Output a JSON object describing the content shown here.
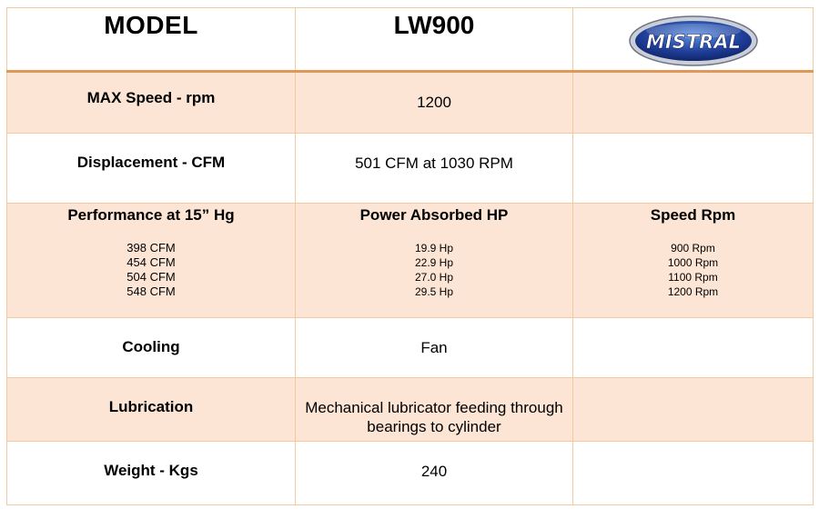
{
  "header": {
    "col1": "MODEL",
    "col2": "LW900",
    "logo_text": "MISTRAL"
  },
  "rows": [
    {
      "label": "MAX Speed - rpm",
      "value": "1200"
    },
    {
      "label": "Displacement -  CFM",
      "value": "501 CFM at 1030 RPM"
    },
    {
      "label": "Performance at 15” Hg",
      "col2_title": "Power Absorbed HP",
      "col3_title": "Speed Rpm",
      "cfm": [
        "398 CFM",
        "454 CFM",
        "504 CFM",
        "548 CFM"
      ],
      "hp": [
        "19.9 Hp",
        "22.9 Hp",
        "27.0 Hp",
        "29.5 Hp"
      ],
      "rpm": [
        "900 Rpm",
        "1000 Rpm",
        "1100 Rpm",
        "1200 Rpm"
      ]
    },
    {
      "label": "Cooling",
      "value": "Fan"
    },
    {
      "label": "Lubrication",
      "value_line1": "Mechanical  lubricator feeding through",
      "value_line2": "bearings to cylinder"
    },
    {
      "label": "Weight - Kgs",
      "value": "240"
    }
  ],
  "colors": {
    "band_fill": "#fce5d5",
    "border": "#f2c9a1",
    "header_rule": "#e0985a",
    "logo_blue": "#1f3f9a"
  }
}
